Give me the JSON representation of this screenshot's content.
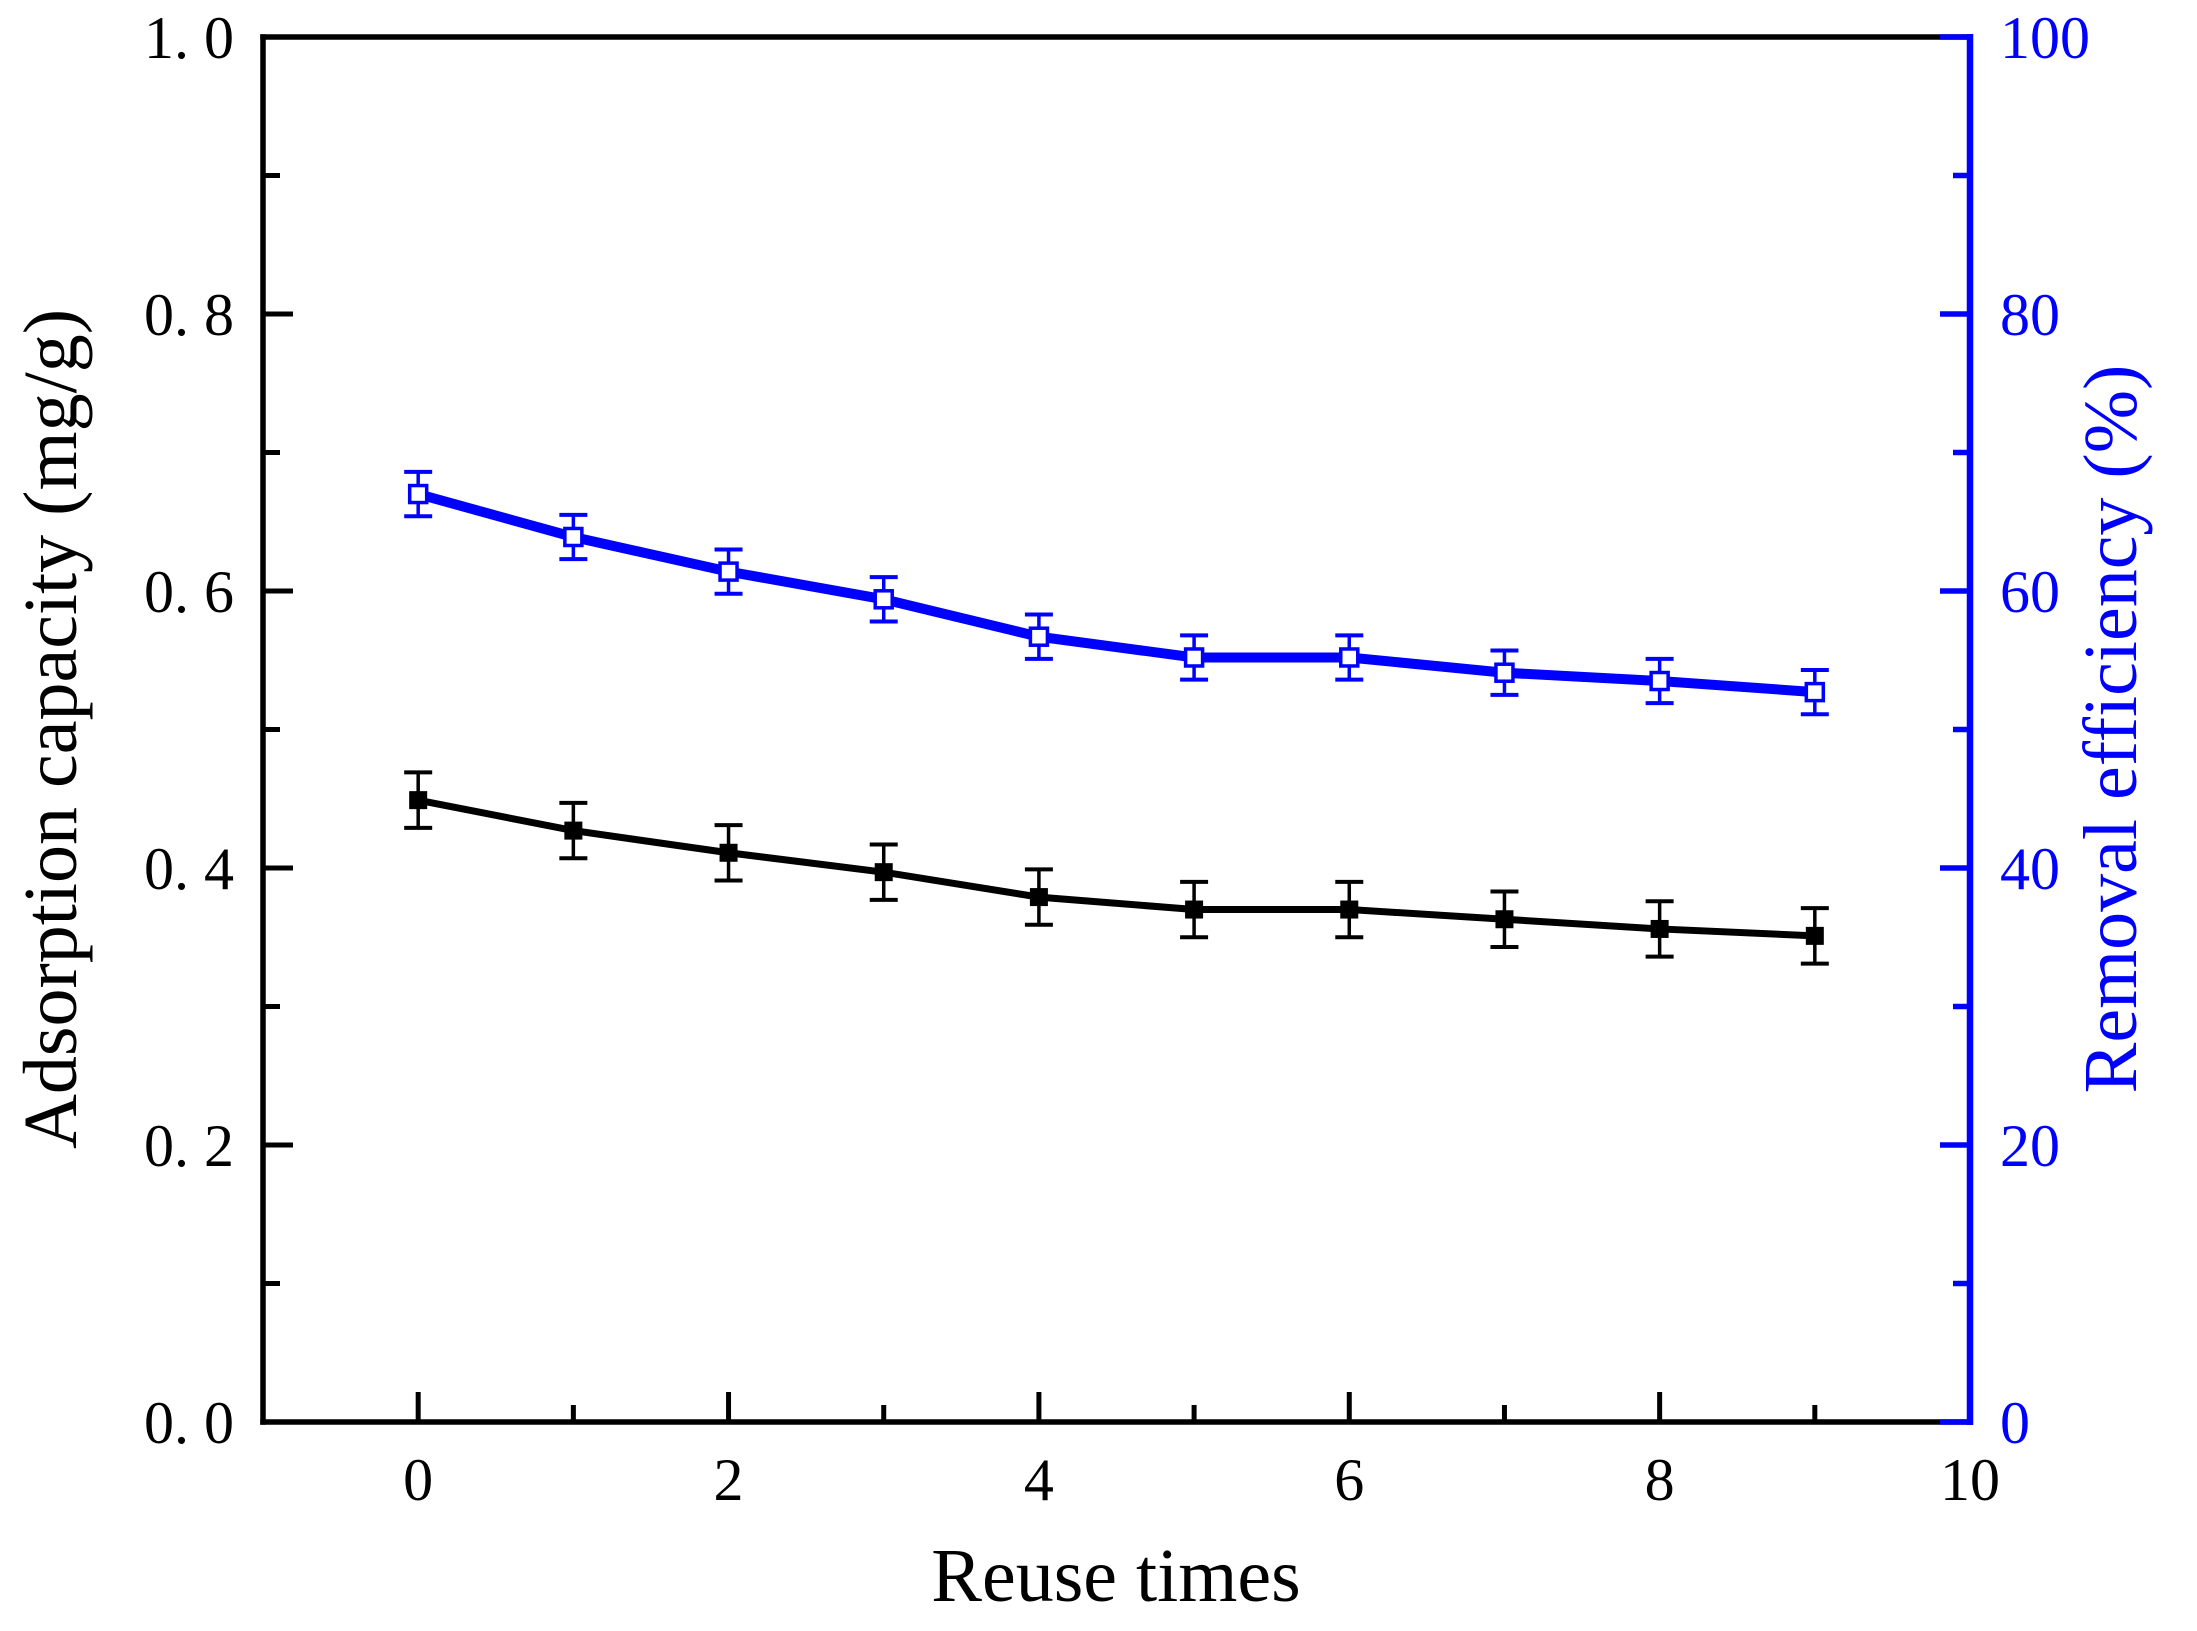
{
  "figure": {
    "background": "#ffffff",
    "kind": "dual-axis line chart with error bars"
  },
  "chart_data": {
    "type": "line",
    "title": "",
    "x": [
      0,
      1,
      2,
      3,
      4,
      5,
      6,
      7,
      8,
      9
    ],
    "series": [
      {
        "name": "Adsorption capacity",
        "axis": "left",
        "color": "#000000",
        "marker": "filled-square",
        "marker_size": 18,
        "line_width": 7,
        "values": [
          0.449,
          0.427,
          0.411,
          0.397,
          0.379,
          0.37,
          0.37,
          0.363,
          0.356,
          0.351
        ],
        "error_bar": 0.02
      },
      {
        "name": "Removal efficiency",
        "axis": "right",
        "color": "#0000FF",
        "marker": "open-square",
        "marker_size": 17,
        "line_width": 10,
        "values": [
          67.0,
          63.9,
          61.4,
          59.4,
          56.7,
          55.2,
          55.2,
          54.1,
          53.5,
          52.7
        ],
        "error_bar": 1.6
      }
    ],
    "x_axis": {
      "label": "Reuse times",
      "color": "#000000",
      "range": [
        -1,
        10
      ],
      "major_ticks": [
        {
          "value": 0,
          "label": "0"
        },
        {
          "value": 2,
          "label": "2"
        },
        {
          "value": 4,
          "label": "4"
        },
        {
          "value": 6,
          "label": "6"
        },
        {
          "value": 8,
          "label": "8"
        },
        {
          "value": 10,
          "label": "10"
        }
      ],
      "minor_ticks": [
        1,
        3,
        5,
        7,
        9
      ]
    },
    "left_axis": {
      "label": "Adsorption capacity (mg/g)",
      "color": "#000000",
      "range": [
        0,
        1.0
      ],
      "major_ticks": [
        {
          "value": 0.0,
          "label": "0. 0"
        },
        {
          "value": 0.2,
          "label": "0. 2"
        },
        {
          "value": 0.4,
          "label": "0. 4"
        },
        {
          "value": 0.6,
          "label": "0. 6"
        },
        {
          "value": 0.8,
          "label": "0. 8"
        },
        {
          "value": 1.0,
          "label": "1. 0"
        }
      ],
      "minor_ticks": [
        0.1,
        0.3,
        0.5,
        0.7,
        0.9
      ]
    },
    "right_axis": {
      "label": "Removal efficiency (%)",
      "color": "#0000FF",
      "range": [
        0,
        100
      ],
      "major_ticks": [
        {
          "value": 0,
          "label": "0"
        },
        {
          "value": 20,
          "label": "20"
        },
        {
          "value": 40,
          "label": "40"
        },
        {
          "value": 60,
          "label": "60"
        },
        {
          "value": 80,
          "label": "80"
        },
        {
          "value": 100,
          "label": "100"
        }
      ],
      "minor_ticks": [
        10,
        30,
        50,
        70,
        90
      ]
    },
    "layout_hints": {
      "grid": "off",
      "legend": "none",
      "tick_direction": "in"
    }
  }
}
